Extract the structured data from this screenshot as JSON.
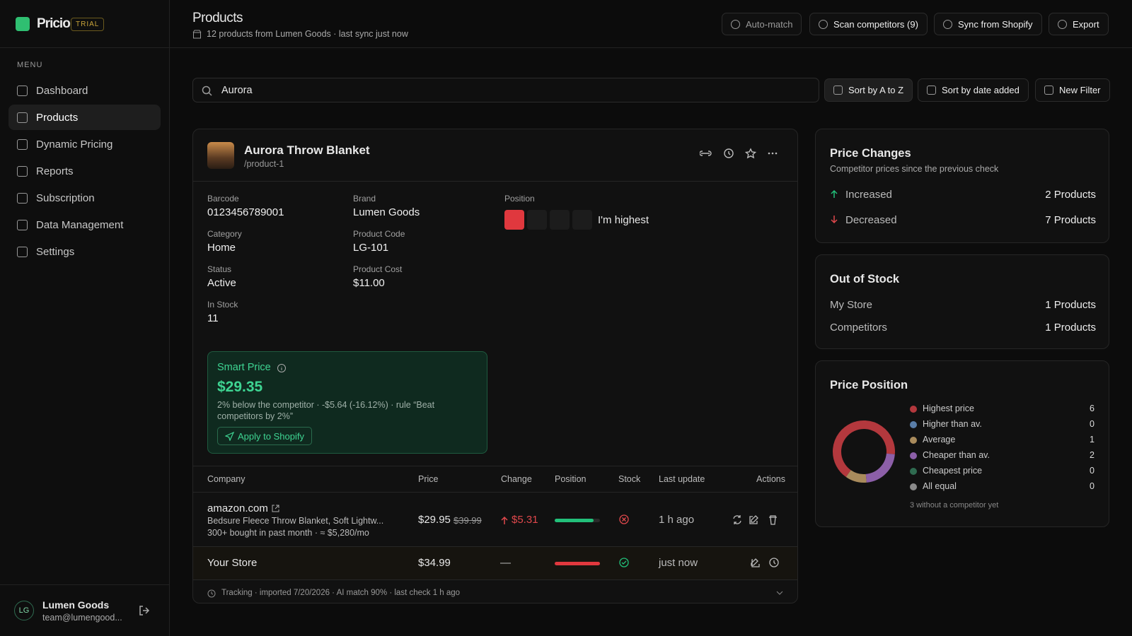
{
  "sidebar": {
    "brand": "Pricio",
    "badge": "TRIAL",
    "menu_label": "MENU",
    "nav": [
      "Dashboard",
      "Products",
      "Dynamic Pricing",
      "Reports",
      "Subscription",
      "Data Management",
      "Settings"
    ],
    "user": {
      "initials": "LG",
      "name": "Lumen Goods",
      "email": "team@lumengood..."
    }
  },
  "header": {
    "title": "Products",
    "subtitle": "12 products from Lumen Goods · last sync just now",
    "actions": [
      "Auto-match",
      "Scan competitors (9)",
      "Sync from Shopify",
      "Export"
    ]
  },
  "toolbar": {
    "search": "Aurora",
    "buttons": [
      "Sort by A to Z",
      "Sort by date added",
      "New Filter"
    ]
  },
  "product": {
    "name": "Aurora Throw Blanket",
    "slug": "/product-1",
    "fields": [
      {
        "label": "Barcode",
        "value": "0123456789001"
      },
      {
        "label": "Brand",
        "value": "Lumen Goods"
      },
      {
        "label": "Category",
        "value": "Home"
      },
      {
        "label": "Product Code",
        "value": "LG-101"
      },
      {
        "label": "Status",
        "value": "Active"
      },
      {
        "label": "Product Cost",
        "value": "$11.00"
      },
      {
        "label": "In Stock",
        "value": "11"
      }
    ],
    "position": {
      "label": "Position",
      "text": "I'm highest"
    },
    "smart_price": {
      "title": "Smart Price",
      "price": "$29.35",
      "description": "2% below the competitor · -$5.64 (-16.12%) · rule “Beat competitors by 2%”",
      "button": "Apply to Shopify"
    },
    "table": {
      "columns": [
        "Company",
        "Price",
        "Change",
        "Position",
        "Stock",
        "Last update",
        "Actions"
      ],
      "rows": [
        {
          "company": "amazon.com",
          "description": "Bedsure Fleece Throw Blanket, Soft Lightw...",
          "meta": "300+ bought in past month · ≈ $5,280/mo",
          "price": "$29.95",
          "old_price": "$39.99",
          "change": "$5.31",
          "last_update": "1 h ago"
        },
        {
          "company": "Your Store",
          "price": "$34.99",
          "change": "—",
          "last_update": "just now"
        }
      ]
    },
    "footer": "Tracking · imported 7/20/2026 · AI match 90% · last check 1 h ago"
  },
  "price_changes": {
    "title": "Price Changes",
    "subtitle": "Competitor prices since the previous check",
    "rows": [
      {
        "label": "Increased",
        "value": "2 Products"
      },
      {
        "label": "Decreased",
        "value": "7 Products"
      }
    ]
  },
  "out_of_stock": {
    "title": "Out of Stock",
    "rows": [
      {
        "label": "My Store",
        "value": "1 Products"
      },
      {
        "label": "Competitors",
        "value": "1 Products"
      }
    ]
  },
  "price_position": {
    "title": "Price Position",
    "items": [
      {
        "label": "Highest price",
        "value": 6,
        "color": "#b3383d"
      },
      {
        "label": "Higher than av.",
        "value": 0,
        "color": "#5a7ea8"
      },
      {
        "label": "Average",
        "value": 1,
        "color": "#a98b5c"
      },
      {
        "label": "Cheaper than av.",
        "value": 2,
        "color": "#8c5fa8"
      },
      {
        "label": "Cheapest price",
        "value": 0,
        "color": "#2f6b50"
      },
      {
        "label": "All equal",
        "value": 0,
        "color": "#8a8a8a"
      }
    ],
    "note": "3 without a competitor yet"
  }
}
